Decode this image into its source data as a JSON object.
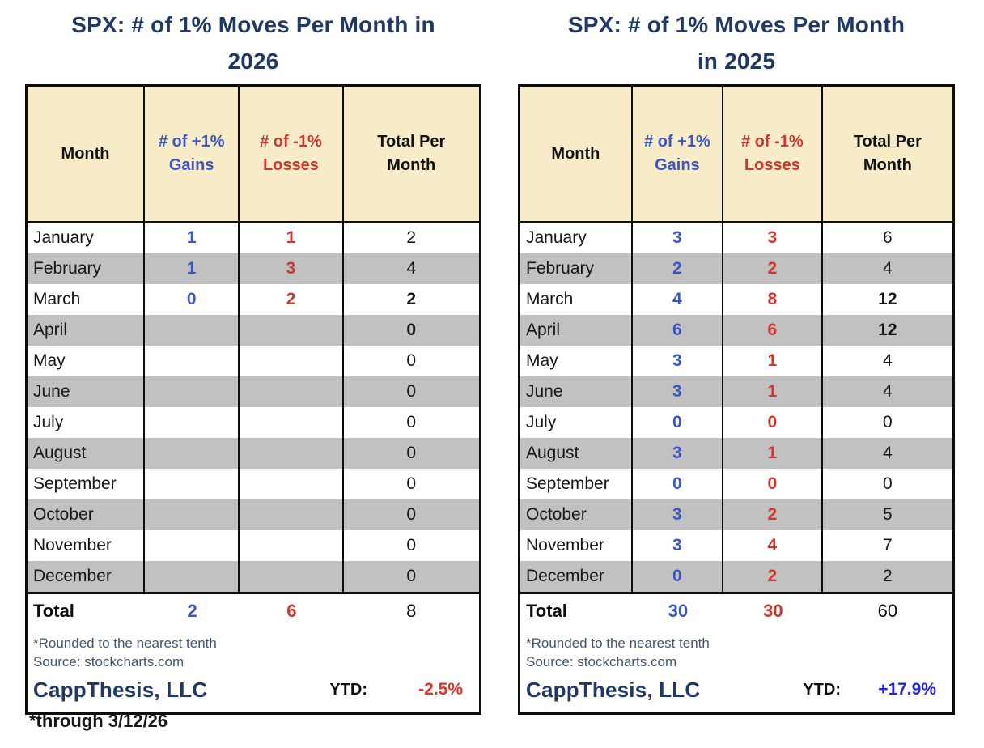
{
  "chart_data": [
    {
      "type": "table",
      "title": "SPX:  # of 1% Moves Per Month in 2026",
      "columns": [
        "Month",
        "# of +1% Gains",
        "# of -1% Losses",
        "Total Per Month"
      ],
      "rows": [
        [
          "January",
          1,
          1,
          2
        ],
        [
          "February",
          1,
          3,
          4
        ],
        [
          "March",
          0,
          2,
          2
        ],
        [
          "April",
          null,
          null,
          0
        ],
        [
          "May",
          null,
          null,
          0
        ],
        [
          "June",
          null,
          null,
          0
        ],
        [
          "July",
          null,
          null,
          0
        ],
        [
          "August",
          null,
          null,
          0
        ],
        [
          "September",
          null,
          null,
          0
        ],
        [
          "October",
          null,
          null,
          0
        ],
        [
          "November",
          null,
          null,
          0
        ],
        [
          "December",
          null,
          null,
          0
        ]
      ],
      "total_row": [
        "Total",
        2,
        6,
        8
      ],
      "ytd": "-2.5%",
      "notes": [
        "*Rounded to the nearest tenth",
        "Source: stockcharts.com",
        "*through 3/12/26"
      ]
    },
    {
      "type": "table",
      "title": "SPX:  # of 1% Moves Per Month in 2025",
      "columns": [
        "Month",
        "# of +1% Gains",
        "# of -1% Losses",
        "Total Per Month"
      ],
      "rows": [
        [
          "January",
          3,
          3,
          6
        ],
        [
          "February",
          2,
          2,
          4
        ],
        [
          "March",
          4,
          8,
          12
        ],
        [
          "April",
          6,
          6,
          12
        ],
        [
          "May",
          3,
          1,
          4
        ],
        [
          "June",
          3,
          1,
          4
        ],
        [
          "July",
          0,
          0,
          0
        ],
        [
          "August",
          3,
          1,
          4
        ],
        [
          "September",
          0,
          0,
          0
        ],
        [
          "October",
          3,
          2,
          5
        ],
        [
          "November",
          3,
          4,
          7
        ],
        [
          "December",
          0,
          2,
          2
        ]
      ],
      "total_row": [
        "Total",
        30,
        30,
        60
      ],
      "ytd": "+17.9%",
      "notes": [
        "*Rounded to the nearest tenth",
        "Source: stockcharts.com"
      ]
    }
  ],
  "colors": {
    "title_navy": "#1f3864",
    "header_bg": "#f8ecc8",
    "stripe_grey": "#c1c1c1",
    "gains_blue": "#3a56c6",
    "losses_red": "#cd362c",
    "note_slate": "#44546a",
    "ytd_red": "#e0312a",
    "ytd_blue": "#2424dd"
  },
  "tables": [
    {
      "title_line1": "SPX:  # of 1% Moves Per Month in",
      "title_line2": "2026",
      "headers": {
        "month": "Month",
        "gains1": "# of +1%",
        "gains2": "Gains",
        "losses1": "# of -1%",
        "losses2": "Losses",
        "total1": "Total Per",
        "total2": "Month"
      },
      "rows": [
        {
          "month": "January",
          "gains": "1",
          "losses": "1",
          "total": "2",
          "shaded": false,
          "bold_total": false
        },
        {
          "month": "February",
          "gains": "1",
          "losses": "3",
          "total": "4",
          "shaded": true,
          "bold_total": false
        },
        {
          "month": "March",
          "gains": "0",
          "losses": "2",
          "total": "2",
          "shaded": false,
          "bold_total": true
        },
        {
          "month": "April",
          "gains": "",
          "losses": "",
          "total": "0",
          "shaded": true,
          "bold_total": true
        },
        {
          "month": "May",
          "gains": "",
          "losses": "",
          "total": "0",
          "shaded": false,
          "bold_total": false
        },
        {
          "month": "June",
          "gains": "",
          "losses": "",
          "total": "0",
          "shaded": true,
          "bold_total": false
        },
        {
          "month": "July",
          "gains": "",
          "losses": "",
          "total": "0",
          "shaded": false,
          "bold_total": false
        },
        {
          "month": "August",
          "gains": "",
          "losses": "",
          "total": "0",
          "shaded": true,
          "bold_total": false
        },
        {
          "month": "September",
          "gains": "",
          "losses": "",
          "total": "0",
          "shaded": false,
          "bold_total": false
        },
        {
          "month": "October",
          "gains": "",
          "losses": "",
          "total": "0",
          "shaded": true,
          "bold_total": false
        },
        {
          "month": "November",
          "gains": "",
          "losses": "",
          "total": "0",
          "shaded": false,
          "bold_total": false
        },
        {
          "month": "December",
          "gains": "",
          "losses": "",
          "total": "0",
          "shaded": true,
          "bold_total": false
        }
      ],
      "total_row": {
        "label": "Total",
        "gains": "2",
        "losses": "6",
        "total": "8"
      },
      "note1": "*Rounded to the nearest tenth",
      "note2": "Source: stockcharts.com",
      "brand": "CappThesis, LLC",
      "ytd_label": "YTD:",
      "ytd_value": "-2.5%",
      "ytd_color": "#e0312a"
    },
    {
      "title_line1": "SPX:  # of 1% Moves Per Month",
      "title_line2": "in 2025",
      "headers": {
        "month": "Month",
        "gains1": "# of +1%",
        "gains2": "Gains",
        "losses1": "# of -1%",
        "losses2": "Losses",
        "total1": "Total Per",
        "total2": "Month"
      },
      "rows": [
        {
          "month": "January",
          "gains": "3",
          "losses": "3",
          "total": "6",
          "shaded": false,
          "bold_total": false
        },
        {
          "month": "February",
          "gains": "2",
          "losses": "2",
          "total": "4",
          "shaded": true,
          "bold_total": false
        },
        {
          "month": "March",
          "gains": "4",
          "losses": "8",
          "total": "12",
          "shaded": false,
          "bold_total": true
        },
        {
          "month": "April",
          "gains": "6",
          "losses": "6",
          "total": "12",
          "shaded": true,
          "bold_total": true
        },
        {
          "month": "May",
          "gains": "3",
          "losses": "1",
          "total": "4",
          "shaded": false,
          "bold_total": false
        },
        {
          "month": "June",
          "gains": "3",
          "losses": "1",
          "total": "4",
          "shaded": true,
          "bold_total": false
        },
        {
          "month": "July",
          "gains": "0",
          "losses": "0",
          "total": "0",
          "shaded": false,
          "bold_total": false
        },
        {
          "month": "August",
          "gains": "3",
          "losses": "1",
          "total": "4",
          "shaded": true,
          "bold_total": false
        },
        {
          "month": "September",
          "gains": "0",
          "losses": "0",
          "total": "0",
          "shaded": false,
          "bold_total": false
        },
        {
          "month": "October",
          "gains": "3",
          "losses": "2",
          "total": "5",
          "shaded": true,
          "bold_total": false
        },
        {
          "month": "November",
          "gains": "3",
          "losses": "4",
          "total": "7",
          "shaded": false,
          "bold_total": false
        },
        {
          "month": "December",
          "gains": "0",
          "losses": "2",
          "total": "2",
          "shaded": true,
          "bold_total": false
        }
      ],
      "total_row": {
        "label": "Total",
        "gains": "30",
        "losses": "30",
        "total": "60"
      },
      "note1": "*Rounded to the nearest tenth",
      "note2": "Source: stockcharts.com",
      "brand": "CappThesis, LLC",
      "ytd_label": "YTD:",
      "ytd_value": "+17.9%",
      "ytd_color": "#2424dd"
    }
  ],
  "footer_note": "*through 3/12/26"
}
